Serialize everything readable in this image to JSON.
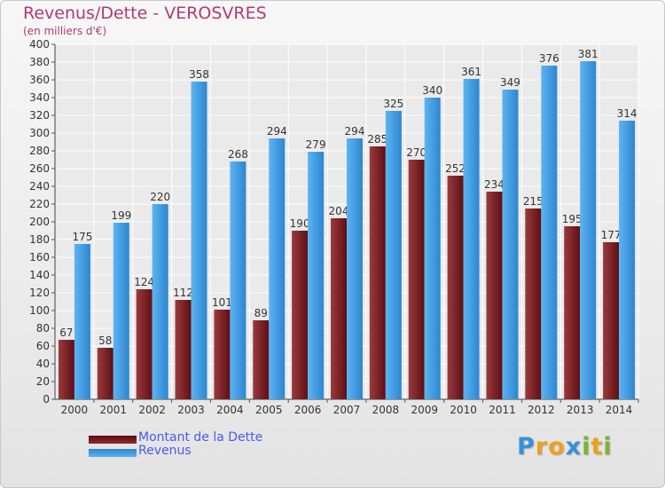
{
  "chart_data": {
    "type": "bar",
    "title": "Revenus/Dette - VEROSVRES",
    "subtitle": "(en milliers d'€)",
    "xlabel": "",
    "ylabel": "",
    "ylim": [
      0,
      400
    ],
    "ytick_step": 20,
    "grid": true,
    "legend_position": "bottom-left",
    "categories": [
      "2000",
      "2001",
      "2002",
      "2003",
      "2004",
      "2005",
      "2006",
      "2007",
      "2008",
      "2009",
      "2010",
      "2011",
      "2012",
      "2013",
      "2014"
    ],
    "series": [
      {
        "name": "Montant de la Dette",
        "color": "#7a1f24",
        "values": [
          67,
          58,
          124,
          112,
          101,
          89,
          190,
          204,
          285,
          270,
          252,
          234,
          215,
          195,
          177
        ]
      },
      {
        "name": "Revenus",
        "color": "#3e9be3",
        "values": [
          175,
          199,
          220,
          358,
          268,
          294,
          279,
          294,
          325,
          340,
          361,
          349,
          376,
          381,
          314
        ]
      }
    ]
  },
  "logo": {
    "letters": [
      {
        "char": "P",
        "color": "#3a8fd8"
      },
      {
        "char": "r",
        "color": "#f0a020"
      },
      {
        "char": "o",
        "color": "#f0a020"
      },
      {
        "char": "x",
        "color": "#3a8fd8"
      },
      {
        "char": "i",
        "color": "#7ab530"
      },
      {
        "char": "t",
        "color": "#f0a020"
      },
      {
        "char": "i",
        "color": "#7ab530"
      }
    ]
  }
}
